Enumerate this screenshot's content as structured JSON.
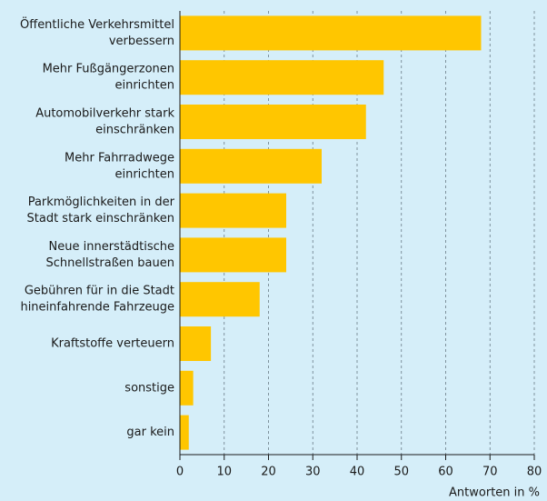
{
  "chart_data": {
    "type": "bar",
    "orientation": "horizontal",
    "categories": [
      [
        "Öffentliche Verkehrsmittel",
        "verbessern"
      ],
      [
        "Mehr Fußgängerzonen",
        "einrichten"
      ],
      [
        "Automobilverkehr stark",
        "einschränken"
      ],
      [
        "Mehr Fahrradwege",
        "einrichten"
      ],
      [
        "Parkmöglichkeiten in der",
        "Stadt stark einschränken"
      ],
      [
        "Neue innerstädtische",
        "Schnellstraßen bauen"
      ],
      [
        "Gebühren für in die Stadt",
        "hineinfahrende Fahrzeuge"
      ],
      [
        "Kraftstoffe verteuern"
      ],
      [
        "sonstige"
      ],
      [
        "gar kein"
      ]
    ],
    "values": [
      68,
      46,
      42,
      32,
      24,
      24,
      18,
      7,
      3,
      2
    ],
    "color": "#ffc600",
    "xlim": [
      0,
      80
    ],
    "xticks": [
      0,
      10,
      20,
      30,
      40,
      50,
      60,
      70,
      80
    ],
    "xlabel": "Antworten in %",
    "grid": true
  }
}
